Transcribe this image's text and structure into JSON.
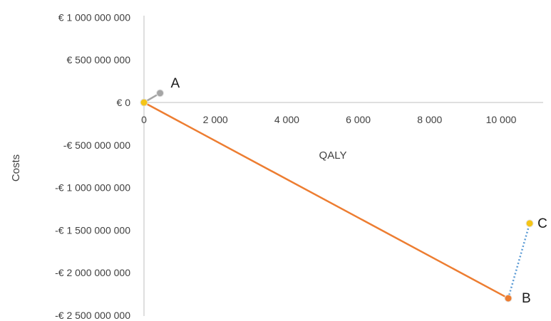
{
  "chart_data": {
    "type": "scatter",
    "xlabel": "QALY",
    "ylabel": "Costs",
    "xlim": [
      0,
      11000
    ],
    "ylim": [
      -2500000000,
      1000000000
    ],
    "x_ticks": [
      0,
      2000,
      4000,
      6000,
      8000,
      10000
    ],
    "x_tick_labels": [
      "0",
      "2 000",
      "4 000",
      "6 000",
      "8 000",
      "10 000"
    ],
    "y_ticks": [
      1000000000,
      500000000,
      0,
      -500000000,
      -1000000000,
      -1500000000,
      -2000000000,
      -2500000000
    ],
    "y_tick_labels": [
      "€ 1 000 000 000",
      "€ 500 000 000",
      "€ 0",
      "-€ 500 000 000",
      "-€ 1 000 000 000",
      "-€ 1 500 000 000",
      "-€ 2 000 000 000",
      "-€ 2 500 000 000"
    ],
    "grid": false,
    "origin": {
      "x": 0,
      "y": 0,
      "color": "#F5C518"
    },
    "points": [
      {
        "label": "A",
        "x": 450,
        "y": 110000000,
        "color": "#A6A6A6"
      },
      {
        "label": "B",
        "x": 10200,
        "y": -2300000000,
        "color": "#ED7D31"
      },
      {
        "label": "C",
        "x": 10800,
        "y": -1420000000,
        "color": "#F5C518"
      }
    ],
    "segments": [
      {
        "from": "origin",
        "to": "A",
        "color": "#A6A6A6",
        "style": "solid"
      },
      {
        "from": "origin",
        "to": "B",
        "color": "#ED7D31",
        "style": "solid"
      },
      {
        "from": "B",
        "to": "C",
        "color": "#5B9BD5",
        "style": "dotted"
      }
    ]
  }
}
